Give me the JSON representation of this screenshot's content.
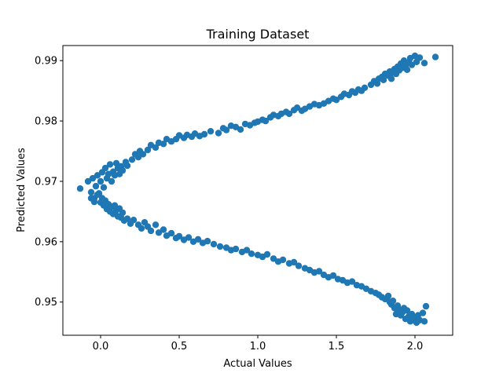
{
  "chart_data": {
    "type": "scatter",
    "title": "Training Dataset",
    "xlabel": "Actual Values",
    "ylabel": "Predicted Values",
    "xlim": [
      -0.24,
      2.24
    ],
    "ylim": [
      0.9445,
      0.9925
    ],
    "x_ticks": [
      0.0,
      0.5,
      1.0,
      1.5,
      2.0
    ],
    "x_tick_labels": [
      "0.0",
      "0.5",
      "1.0",
      "1.5",
      "2.0"
    ],
    "y_ticks": [
      0.95,
      0.96,
      0.97,
      0.98,
      0.99
    ],
    "y_tick_labels": [
      "0.95",
      "0.96",
      "0.97",
      "0.98",
      "0.99"
    ],
    "grid": false,
    "marker_color": "#1f77b4",
    "series": [
      {
        "points": [
          [
            -0.13,
            0.9688
          ],
          [
            -0.08,
            0.97
          ],
          [
            -0.06,
            0.9682
          ],
          [
            -0.05,
            0.9705
          ],
          [
            -0.04,
            0.9672
          ],
          [
            -0.03,
            0.9692
          ],
          [
            -0.02,
            0.971
          ],
          [
            -0.01,
            0.968
          ],
          [
            0.0,
            0.97
          ],
          [
            0.01,
            0.9715
          ],
          [
            0.02,
            0.969
          ],
          [
            0.03,
            0.9722
          ],
          [
            0.04,
            0.9705
          ],
          [
            0.05,
            0.9712
          ],
          [
            0.06,
            0.9728
          ],
          [
            0.07,
            0.97
          ],
          [
            0.08,
            0.9716
          ],
          [
            0.09,
            0.971
          ],
          [
            0.1,
            0.973
          ],
          [
            0.11,
            0.9722
          ],
          [
            0.12,
            0.9712
          ],
          [
            0.13,
            0.9725
          ],
          [
            0.14,
            0.9718
          ],
          [
            0.16,
            0.9732
          ],
          [
            0.17,
            0.9726
          ],
          [
            0.2,
            0.9736
          ],
          [
            0.22,
            0.9745
          ],
          [
            0.24,
            0.974
          ],
          [
            0.25,
            0.975
          ],
          [
            0.27,
            0.9745
          ],
          [
            0.3,
            0.9752
          ],
          [
            0.32,
            0.976
          ],
          [
            0.35,
            0.9756
          ],
          [
            0.37,
            0.9764
          ],
          [
            0.4,
            0.9762
          ],
          [
            0.42,
            0.977
          ],
          [
            0.45,
            0.9766
          ],
          [
            0.48,
            0.977
          ],
          [
            0.5,
            0.9776
          ],
          [
            0.53,
            0.9772
          ],
          [
            0.55,
            0.9777
          ],
          [
            0.58,
            0.9774
          ],
          [
            0.6,
            0.9779
          ],
          [
            0.63,
            0.9775
          ],
          [
            0.66,
            0.9778
          ],
          [
            0.7,
            0.9783
          ],
          [
            0.75,
            0.978
          ],
          [
            0.78,
            0.9788
          ],
          [
            0.8,
            0.9785
          ],
          [
            0.83,
            0.9792
          ],
          [
            0.86,
            0.979
          ],
          [
            0.89,
            0.9786
          ],
          [
            0.92,
            0.9795
          ],
          [
            0.95,
            0.9793
          ],
          [
            0.98,
            0.9797
          ],
          [
            1.0,
            0.9799
          ],
          [
            1.03,
            0.9802
          ],
          [
            1.05,
            0.98
          ],
          [
            1.08,
            0.9806
          ],
          [
            1.1,
            0.981
          ],
          [
            1.13,
            0.9808
          ],
          [
            1.15,
            0.9812
          ],
          [
            1.18,
            0.9815
          ],
          [
            1.2,
            0.9812
          ],
          [
            1.23,
            0.9818
          ],
          [
            1.25,
            0.9822
          ],
          [
            1.28,
            0.9817
          ],
          [
            1.3,
            0.982
          ],
          [
            1.33,
            0.9824
          ],
          [
            1.36,
            0.9828
          ],
          [
            1.39,
            0.9826
          ],
          [
            1.42,
            0.9829
          ],
          [
            1.45,
            0.9833
          ],
          [
            1.48,
            0.9837
          ],
          [
            1.5,
            0.9835
          ],
          [
            1.53,
            0.984
          ],
          [
            1.55,
            0.9845
          ],
          [
            1.58,
            0.9843
          ],
          [
            1.6,
            0.9849
          ],
          [
            1.62,
            0.9847
          ],
          [
            1.64,
            0.9852
          ],
          [
            1.66,
            0.985
          ],
          [
            1.68,
            0.9855
          ],
          [
            1.72,
            0.986
          ],
          [
            1.74,
            0.9866
          ],
          [
            1.76,
            0.9862
          ],
          [
            1.77,
            0.987
          ],
          [
            1.79,
            0.9873
          ],
          [
            1.8,
            0.9868
          ],
          [
            1.81,
            0.9878
          ],
          [
            1.83,
            0.9875
          ],
          [
            1.84,
            0.9882
          ],
          [
            1.85,
            0.987
          ],
          [
            1.86,
            0.988
          ],
          [
            1.87,
            0.9886
          ],
          [
            1.88,
            0.9878
          ],
          [
            1.89,
            0.989
          ],
          [
            1.9,
            0.9884
          ],
          [
            1.91,
            0.9895
          ],
          [
            1.92,
            0.9888
          ],
          [
            1.93,
            0.99
          ],
          [
            1.94,
            0.9892
          ],
          [
            1.95,
            0.9885
          ],
          [
            1.96,
            0.9897
          ],
          [
            1.97,
            0.9904
          ],
          [
            1.98,
            0.9893
          ],
          [
            2.0,
            0.9908
          ],
          [
            2.01,
            0.9898
          ],
          [
            2.03,
            0.9905
          ],
          [
            2.06,
            0.9896
          ],
          [
            2.13,
            0.9906
          ],
          [
            -0.06,
            0.9672
          ],
          [
            -0.04,
            0.9666
          ],
          [
            -0.02,
            0.9678
          ],
          [
            0.0,
            0.9665
          ],
          [
            0.01,
            0.9672
          ],
          [
            0.02,
            0.966
          ],
          [
            0.03,
            0.9668
          ],
          [
            0.04,
            0.9654
          ],
          [
            0.05,
            0.9662
          ],
          [
            0.06,
            0.965
          ],
          [
            0.07,
            0.9658
          ],
          [
            0.08,
            0.9646
          ],
          [
            0.09,
            0.966
          ],
          [
            0.1,
            0.9652
          ],
          [
            0.11,
            0.9642
          ],
          [
            0.12,
            0.9655
          ],
          [
            0.13,
            0.964
          ],
          [
            0.14,
            0.9648
          ],
          [
            0.15,
            0.9635
          ],
          [
            0.17,
            0.9638
          ],
          [
            0.19,
            0.963
          ],
          [
            0.21,
            0.9636
          ],
          [
            0.24,
            0.9628
          ],
          [
            0.26,
            0.9622
          ],
          [
            0.28,
            0.9632
          ],
          [
            0.3,
            0.9625
          ],
          [
            0.32,
            0.9618
          ],
          [
            0.35,
            0.9628
          ],
          [
            0.37,
            0.9615
          ],
          [
            0.4,
            0.962
          ],
          [
            0.42,
            0.961
          ],
          [
            0.45,
            0.9614
          ],
          [
            0.48,
            0.9606
          ],
          [
            0.5,
            0.9609
          ],
          [
            0.53,
            0.9603
          ],
          [
            0.56,
            0.9607
          ],
          [
            0.59,
            0.96
          ],
          [
            0.62,
            0.9604
          ],
          [
            0.65,
            0.9598
          ],
          [
            0.68,
            0.9601
          ],
          [
            0.72,
            0.9596
          ],
          [
            0.76,
            0.9592
          ],
          [
            0.8,
            0.959
          ],
          [
            0.83,
            0.9586
          ],
          [
            0.86,
            0.9588
          ],
          [
            0.9,
            0.9583
          ],
          [
            0.93,
            0.9586
          ],
          [
            0.96,
            0.958
          ],
          [
            1.0,
            0.9578
          ],
          [
            1.03,
            0.9575
          ],
          [
            1.06,
            0.9579
          ],
          [
            1.1,
            0.9572
          ],
          [
            1.13,
            0.9567
          ],
          [
            1.16,
            0.957
          ],
          [
            1.2,
            0.9564
          ],
          [
            1.23,
            0.9566
          ],
          [
            1.26,
            0.956
          ],
          [
            1.3,
            0.9556
          ],
          [
            1.33,
            0.9553
          ],
          [
            1.36,
            0.9549
          ],
          [
            1.39,
            0.9551
          ],
          [
            1.42,
            0.9545
          ],
          [
            1.45,
            0.9541
          ],
          [
            1.48,
            0.9544
          ],
          [
            1.51,
            0.9538
          ],
          [
            1.54,
            0.9536
          ],
          [
            1.57,
            0.9532
          ],
          [
            1.6,
            0.9534
          ],
          [
            1.63,
            0.9528
          ],
          [
            1.66,
            0.9526
          ],
          [
            1.69,
            0.9522
          ],
          [
            1.72,
            0.9518
          ],
          [
            1.75,
            0.9515
          ],
          [
            1.77,
            0.9512
          ],
          [
            1.79,
            0.9508
          ],
          [
            1.81,
            0.9505
          ],
          [
            1.83,
            0.951
          ],
          [
            1.84,
            0.95
          ],
          [
            1.85,
            0.9496
          ],
          [
            1.86,
            0.9502
          ],
          [
            1.87,
            0.949
          ],
          [
            1.88,
            0.948
          ],
          [
            1.89,
            0.9494
          ],
          [
            1.9,
            0.9487
          ],
          [
            1.91,
            0.9478
          ],
          [
            1.92,
            0.9483
          ],
          [
            1.93,
            0.949
          ],
          [
            1.94,
            0.9472
          ],
          [
            1.95,
            0.9486
          ],
          [
            1.96,
            0.9476
          ],
          [
            1.97,
            0.9468
          ],
          [
            1.98,
            0.948
          ],
          [
            1.99,
            0.947
          ],
          [
            2.0,
            0.9475
          ],
          [
            2.01,
            0.9466
          ],
          [
            2.02,
            0.9478
          ],
          [
            2.03,
            0.947
          ],
          [
            2.05,
            0.9482
          ],
          [
            2.06,
            0.9468
          ],
          [
            2.07,
            0.9493
          ]
        ]
      }
    ]
  }
}
